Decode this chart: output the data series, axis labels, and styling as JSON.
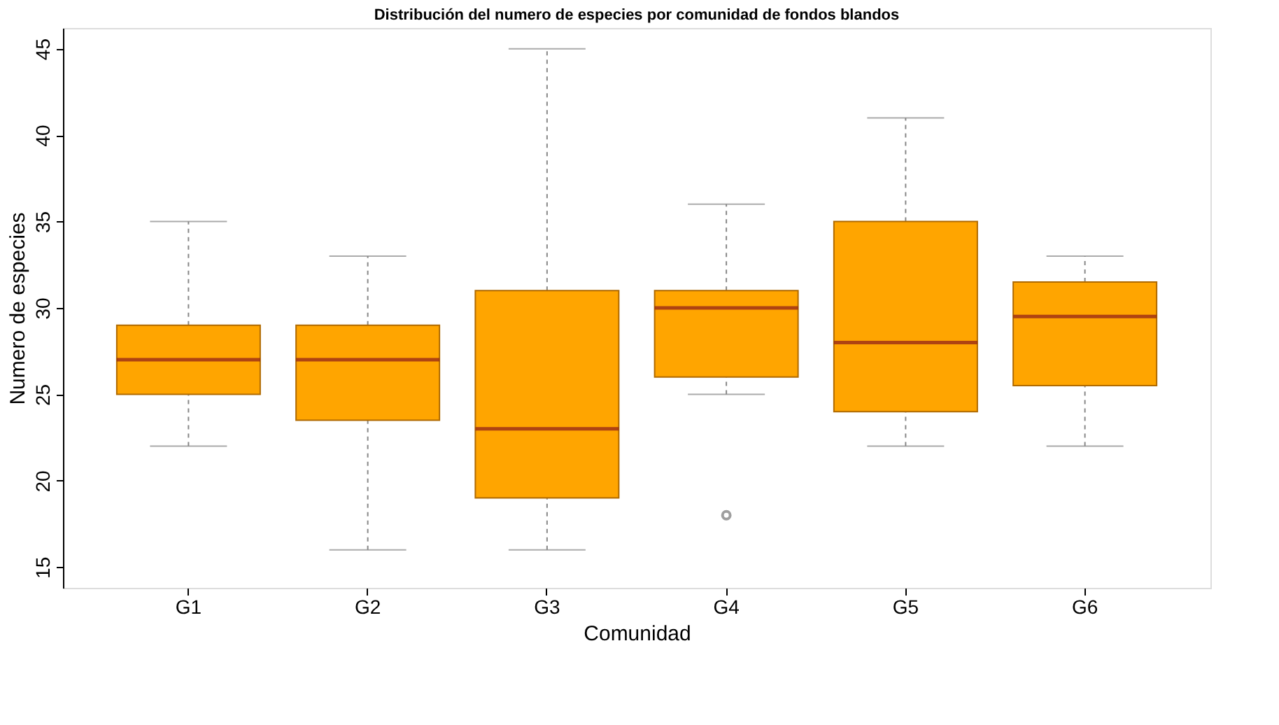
{
  "chart_data": {
    "type": "box",
    "title": "Distribución del numero de especies por comunidad de fondos blandos",
    "xlabel": "Comunidad",
    "ylabel": "Numero de especies",
    "categories": [
      "G1",
      "G2",
      "G3",
      "G4",
      "G5",
      "G6"
    ],
    "ylim": [
      13.8,
      46.2
    ],
    "yticks": [
      15,
      20,
      25,
      30,
      35,
      40,
      45
    ],
    "grid": false,
    "series": [
      {
        "color": "#ffa500",
        "boxes": [
          {
            "low": 22,
            "q1": 25,
            "median": 27,
            "q3": 29,
            "high": 35
          },
          {
            "low": 16,
            "q1": 23.5,
            "median": 27,
            "q3": 29,
            "high": 33
          },
          {
            "low": 16,
            "q1": 19,
            "median": 23,
            "q3": 31,
            "high": 45
          },
          {
            "low": 25,
            "q1": 26,
            "median": 30,
            "q3": 31,
            "high": 36,
            "outliers": [
              18
            ]
          },
          {
            "low": 22,
            "q1": 24,
            "median": 28,
            "q3": 35,
            "high": 41
          },
          {
            "low": 22,
            "q1": 25.5,
            "median": 29.5,
            "q3": 31.5,
            "high": 33
          }
        ]
      }
    ]
  }
}
